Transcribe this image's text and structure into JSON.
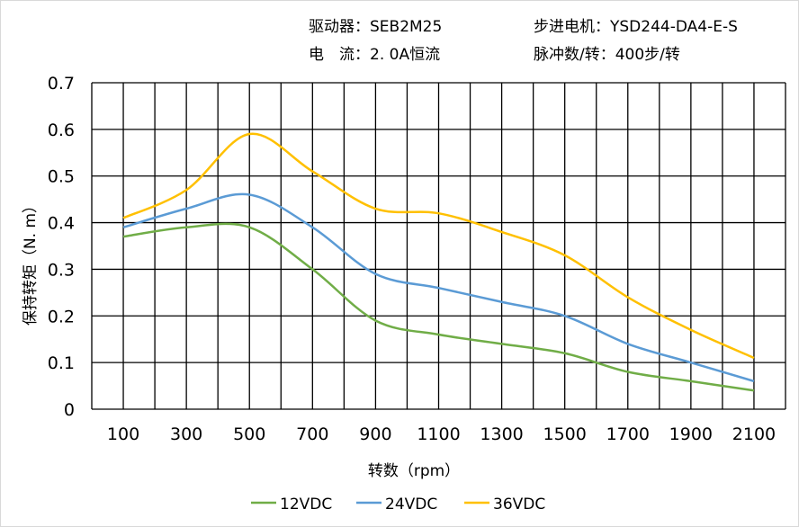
{
  "header": {
    "driver": "驱动器：SEB2M25",
    "motor": "步进电机：YSD244-DA4-E-S",
    "current": "电　流：2. 0A恒流",
    "pulses": "脉冲数/转：400步/转"
  },
  "chart_data": {
    "type": "line",
    "xlabel": "转数（rpm）",
    "ylabel": "保持转矩（N. m）",
    "x": [
      100,
      300,
      500,
      700,
      900,
      1100,
      1300,
      1500,
      1700,
      1900,
      2100
    ],
    "xlim": [
      0,
      2200
    ],
    "ylim": [
      0,
      0.7
    ],
    "yticks": [
      "0",
      "0.1",
      "0.2",
      "0.3",
      "0.4",
      "0.5",
      "0.6",
      "0.7"
    ],
    "grid": true,
    "legend": "bottom",
    "series": [
      {
        "name": "12VDC",
        "color": "#70ad47",
        "values": [
          0.37,
          0.39,
          0.39,
          0.3,
          0.19,
          0.16,
          0.14,
          0.12,
          0.08,
          0.06,
          0.04
        ]
      },
      {
        "name": "24VDC",
        "color": "#5b9bd5",
        "values": [
          0.39,
          0.43,
          0.46,
          0.39,
          0.29,
          0.26,
          0.23,
          0.2,
          0.14,
          0.1,
          0.06
        ]
      },
      {
        "name": "36VDC",
        "color": "#ffc000",
        "values": [
          0.41,
          0.47,
          0.59,
          0.51,
          0.43,
          0.42,
          0.38,
          0.33,
          0.24,
          0.17,
          0.11
        ]
      }
    ]
  }
}
